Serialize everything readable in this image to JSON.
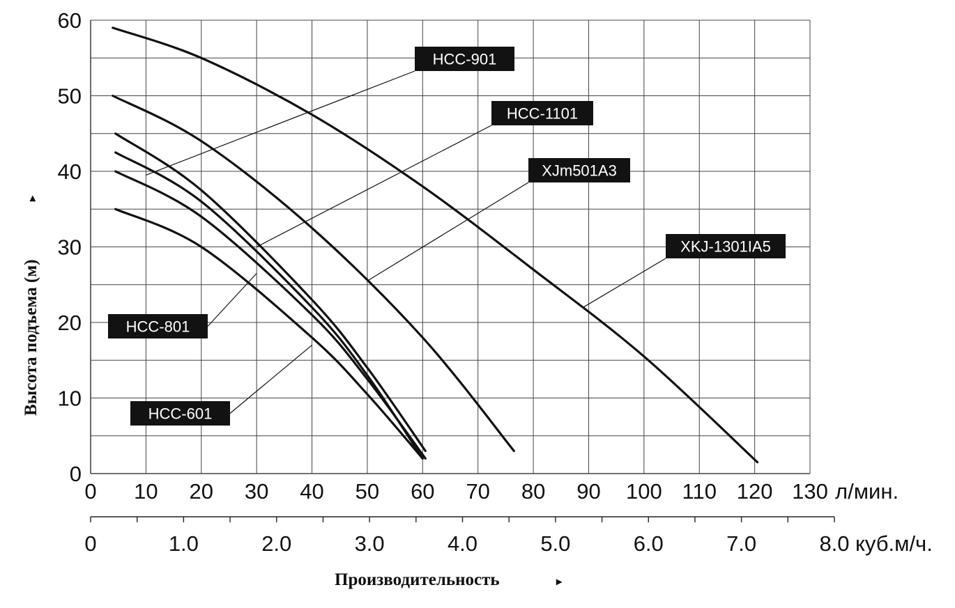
{
  "chart_data": {
    "type": "line",
    "title": "",
    "ylabel": "Высота подъема (м)",
    "xlabel": "Производительность",
    "ylim": [
      0,
      60
    ],
    "xlim": [
      0,
      130
    ],
    "x_unit": "л/мин.",
    "x2_unit": "куб.м/ч.",
    "x2lim": [
      0,
      8.0
    ],
    "y_ticks": [
      "0",
      "10",
      "20",
      "30",
      "40",
      "50",
      "60"
    ],
    "x_ticks": [
      "0",
      "10",
      "20",
      "30",
      "40",
      "50",
      "60",
      "70",
      "80",
      "90",
      "100",
      "110",
      "120",
      "130"
    ],
    "x2_ticks": [
      "0",
      "1.0",
      "2.0",
      "3.0",
      "4.0",
      "5.0",
      "6.0",
      "7.0",
      "8.0"
    ],
    "arrow_glyph": "▸",
    "grid": true,
    "series": [
      {
        "name": "HCC-901",
        "x": [
          4,
          20,
          40,
          60,
          80,
          100,
          120.5
        ],
        "y": [
          59,
          55,
          47.5,
          38,
          27,
          15.5,
          1.5
        ],
        "label_at": [
          10,
          39.5
        ]
      },
      {
        "name": "HCC-1101",
        "x": [
          4,
          20,
          40,
          60,
          76.5
        ],
        "y": [
          50,
          44,
          32.5,
          18,
          3
        ],
        "label_at": [
          30,
          30
        ]
      },
      {
        "name": "XJm501A3",
        "x": [
          4.5,
          20,
          40,
          50,
          60.5
        ],
        "y": [
          45,
          37.5,
          23,
          14,
          3
        ],
        "label_at": [
          50,
          25.5
        ]
      },
      {
        "name": "HCC-801",
        "x": [
          4.5,
          20,
          40,
          50,
          60
        ],
        "y": [
          42.5,
          36,
          22,
          13,
          2
        ],
        "label_at": [
          30,
          26.5
        ]
      },
      {
        "name": "XKJ-1301IA5",
        "x": [
          4.5,
          20,
          40,
          50,
          60.5
        ],
        "y": [
          40,
          34,
          21,
          12.5,
          2
        ],
        "label_at": [
          89,
          22
        ]
      },
      {
        "name": "HCC-601",
        "x": [
          4.5,
          20,
          40,
          50,
          60
        ],
        "y": [
          35,
          30,
          18,
          10.5,
          2
        ],
        "label_at": [
          40,
          17
        ]
      }
    ]
  }
}
